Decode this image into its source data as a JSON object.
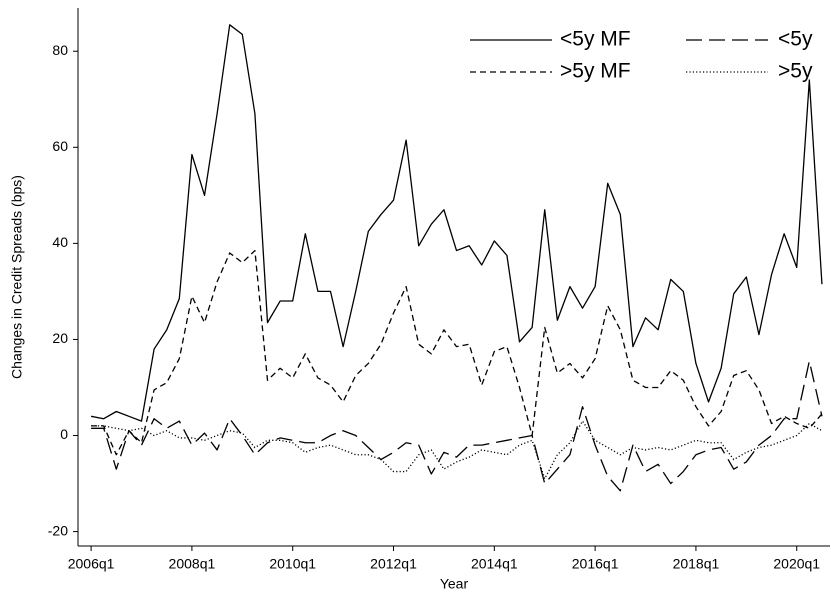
{
  "chart_data": {
    "type": "line",
    "x_label": "Year",
    "y_label": "Changes in Credit Spreads (bps)",
    "x": [
      2006,
      2006.25,
      2006.5,
      2006.75,
      2007,
      2007.25,
      2007.5,
      2007.75,
      2008,
      2008.25,
      2008.5,
      2008.75,
      2009,
      2009.25,
      2009.5,
      2009.75,
      2010,
      2010.25,
      2010.5,
      2010.75,
      2011,
      2011.25,
      2011.5,
      2011.75,
      2012,
      2012.25,
      2012.5,
      2012.75,
      2013,
      2013.25,
      2013.5,
      2013.75,
      2014,
      2014.25,
      2014.5,
      2014.75,
      2015,
      2015.25,
      2015.5,
      2015.75,
      2016,
      2016.25,
      2016.5,
      2016.75,
      2017,
      2017.25,
      2017.5,
      2017.75,
      2018,
      2018.25,
      2018.5,
      2018.75,
      2019,
      2019.25,
      2019.5,
      2019.75,
      2020,
      2020.25,
      2020.5
    ],
    "series": [
      {
        "name": "<5y MF",
        "color": "#000000",
        "style": "solid",
        "values": [
          4,
          3.5,
          5,
          4,
          3,
          18,
          22,
          28.5,
          58.5,
          50,
          67,
          85.5,
          83.5,
          67,
          23.5,
          28,
          28,
          42,
          30,
          30,
          18.5,
          30,
          42.5,
          46,
          49,
          61.5,
          39.5,
          44,
          47,
          38.5,
          39.5,
          35.5,
          40.5,
          37.5,
          19.5,
          22.5,
          47,
          24,
          31,
          26.5,
          31,
          52.5,
          46,
          18.5,
          24.5,
          22,
          32.5,
          30,
          15,
          7,
          14,
          29.5,
          33,
          21,
          33.5,
          42,
          35,
          74,
          31.5
        ]
      },
      {
        "name": "<5y",
        "color": "#000000",
        "style": "longdash",
        "values": [
          1.5,
          1.5,
          -7,
          1,
          -2,
          3.5,
          1.5,
          3,
          -2,
          0.5,
          -3,
          3.5,
          0,
          -4,
          -1.5,
          -0.5,
          -1,
          -1.5,
          -1.5,
          0,
          1,
          0,
          -2.5,
          -5,
          -3.5,
          -1.5,
          -2,
          -8,
          -3.5,
          -4.5,
          -2,
          -2,
          -1.5,
          -1,
          -0.5,
          0,
          -10,
          -7,
          -4,
          6,
          -2,
          -8.5,
          -11.5,
          -2,
          -7.5,
          -6,
          -10,
          -7.5,
          -4,
          -3,
          -2.5,
          -7,
          -5.5,
          -2,
          0,
          3.5,
          3.5,
          15.5,
          4
        ]
      },
      {
        "name": ">5y MF",
        "color": "#000000",
        "style": "dash",
        "values": [
          2,
          2,
          -4,
          1,
          -1.5,
          9.5,
          11,
          16,
          29,
          23.5,
          32,
          38,
          36,
          38.5,
          11.5,
          14,
          12,
          17,
          12,
          10.5,
          7,
          12.5,
          15,
          19,
          25.5,
          31,
          19,
          17,
          22,
          18.5,
          19,
          10.5,
          17.5,
          18.5,
          10,
          0,
          22.5,
          13,
          15,
          12,
          16,
          27,
          22,
          11.5,
          10,
          10,
          13.5,
          11.5,
          6,
          2,
          5,
          12.5,
          13.5,
          9.5,
          2.5,
          4,
          2.5,
          1.5,
          4.5
        ]
      },
      {
        "name": ">5y",
        "color": "#000000",
        "style": "dot",
        "values": [
          2,
          2,
          1.5,
          1,
          1.5,
          0,
          1,
          -0.5,
          -0.5,
          -1,
          0,
          1,
          0.5,
          -2.5,
          -1,
          -1,
          -1.5,
          -3.5,
          -2.5,
          -2,
          -3,
          -4,
          -4,
          -5,
          -7.5,
          -7.5,
          -4,
          -3,
          -7,
          -5.5,
          -4.5,
          -3,
          -3.5,
          -4,
          -2,
          -1,
          -9,
          -4,
          -1.5,
          3,
          -1,
          -2.5,
          -4,
          -2.5,
          -3,
          -2.5,
          -3,
          -2,
          -1,
          -1.5,
          -1.5,
          -5,
          -3.5,
          -2.5,
          -2,
          -1,
          0,
          2.5,
          1
        ]
      }
    ],
    "xlim": [
      2005.74,
      2020.66
    ],
    "xticks": [
      {
        "value": 2006,
        "label": "2006q1"
      },
      {
        "value": 2008,
        "label": "2008q1"
      },
      {
        "value": 2010,
        "label": "2010q1"
      },
      {
        "value": 2012,
        "label": "2012q1"
      },
      {
        "value": 2014,
        "label": "2014q1"
      },
      {
        "value": 2016,
        "label": "2016q1"
      },
      {
        "value": 2018,
        "label": "2018q1"
      },
      {
        "value": 2020,
        "label": "2020q1"
      }
    ],
    "ylim": [
      -23,
      89
    ],
    "yticks": [
      -20,
      0,
      20,
      40,
      60,
      80
    ],
    "grid": false,
    "legend": "top-right"
  }
}
